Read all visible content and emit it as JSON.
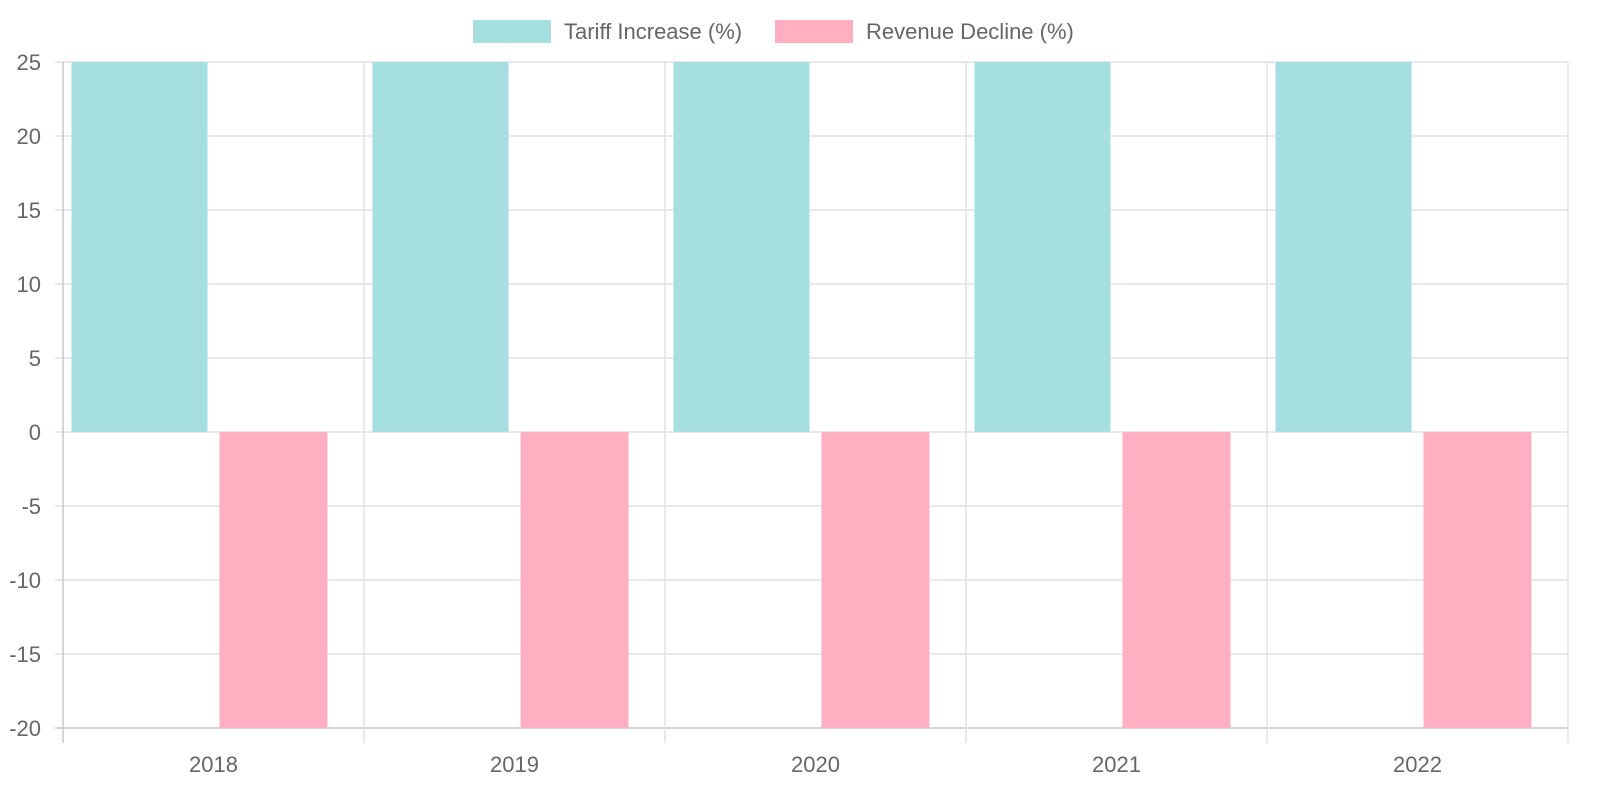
{
  "chart_data": {
    "type": "bar",
    "categories": [
      "2018",
      "2019",
      "2020",
      "2021",
      "2022"
    ],
    "series": [
      {
        "name": "Tariff Increase (%)",
        "values": [
          25,
          25,
          25,
          25,
          25
        ],
        "color": "#a6dfe0"
      },
      {
        "name": "Revenue Decline (%)",
        "values": [
          -20,
          -20,
          -20,
          -20,
          -20
        ],
        "color": "#feb0c2"
      }
    ],
    "title": "",
    "xlabel": "",
    "ylabel": "",
    "ylim": [
      -20,
      25
    ],
    "yticks": [
      25,
      20,
      15,
      10,
      5,
      0,
      -5,
      -10,
      -15,
      -20
    ],
    "grid": true,
    "legend": "top"
  }
}
